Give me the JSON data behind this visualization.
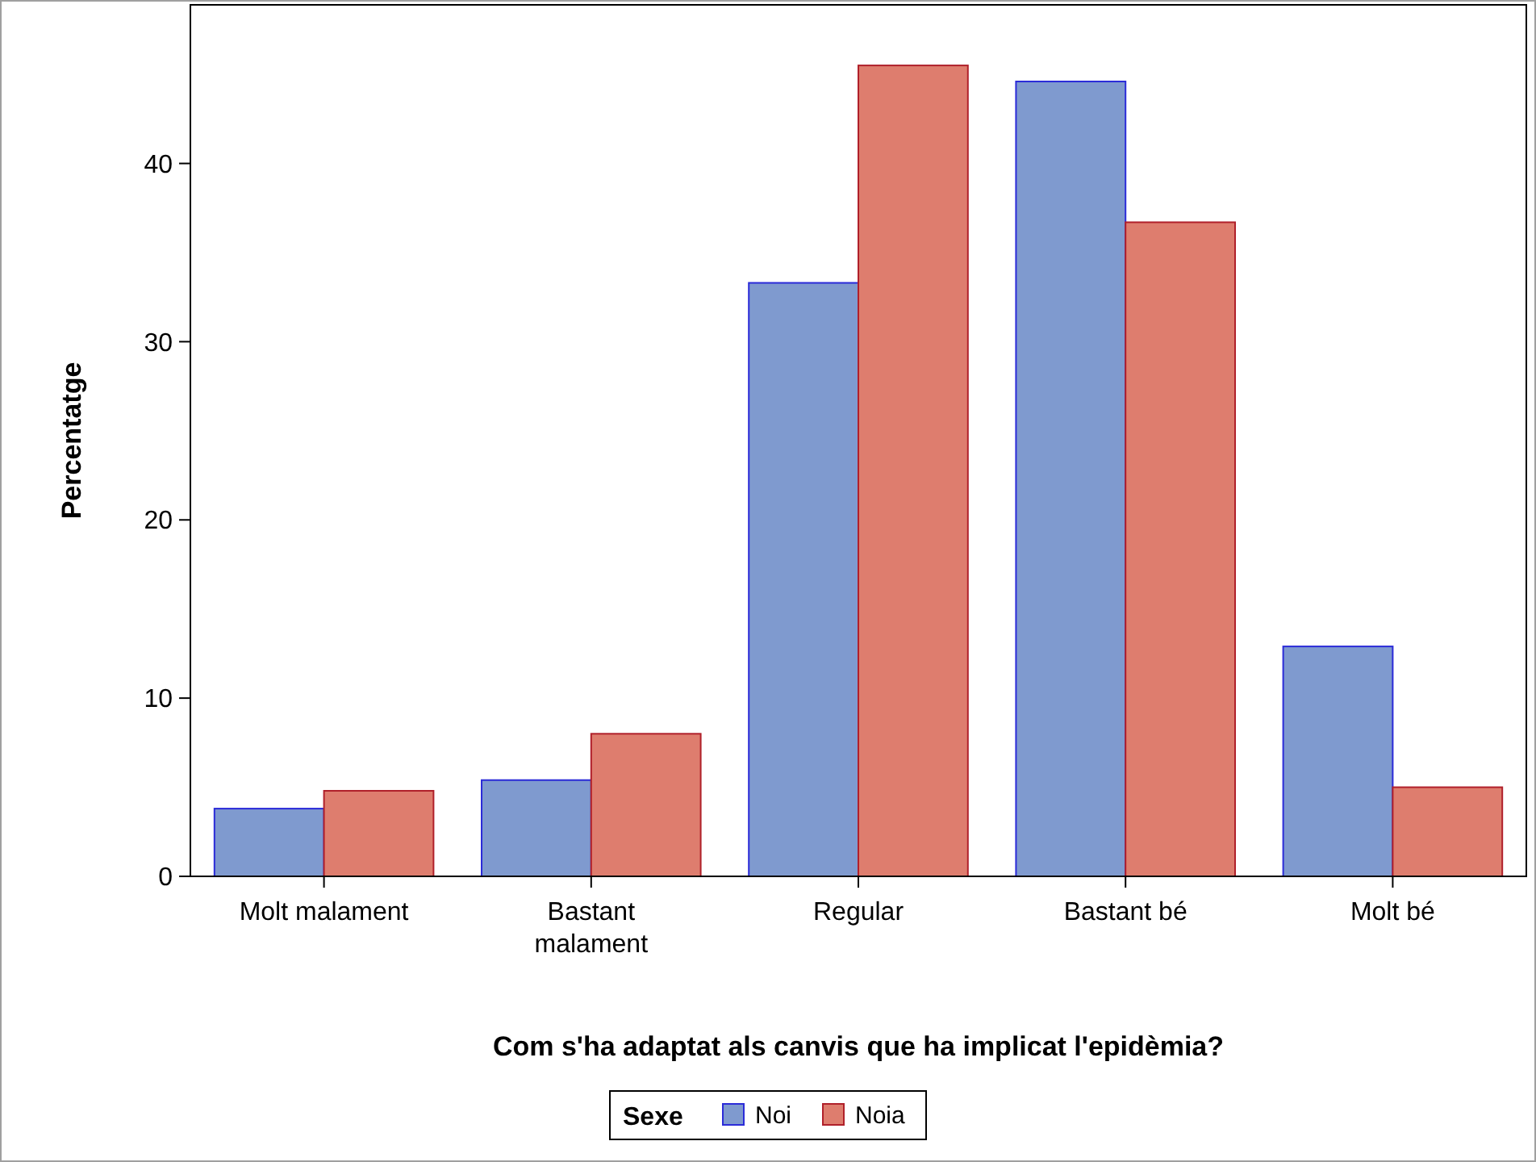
{
  "chart_data": {
    "type": "bar",
    "xlabel": "Com s'ha adaptat als canvis que ha implicat l'epidèmia?",
    "ylabel": "Percentatge",
    "legend_title": "Sexe",
    "categories": [
      "Molt malament",
      "Bastant malament",
      "Regular",
      "Bastant bé",
      "Molt bé"
    ],
    "series": [
      {
        "name": "Noi",
        "color": "#7f9acf",
        "values": [
          3.8,
          5.4,
          33.3,
          44.6,
          12.9
        ]
      },
      {
        "name": "Noia",
        "color": "#de7d6e",
        "values": [
          4.8,
          8.0,
          45.5,
          36.7,
          5.0
        ]
      }
    ],
    "ylim": [
      0,
      48.9
    ],
    "yticks": [
      0,
      10,
      20,
      30,
      40
    ],
    "grid": false,
    "legend": "bottom"
  }
}
